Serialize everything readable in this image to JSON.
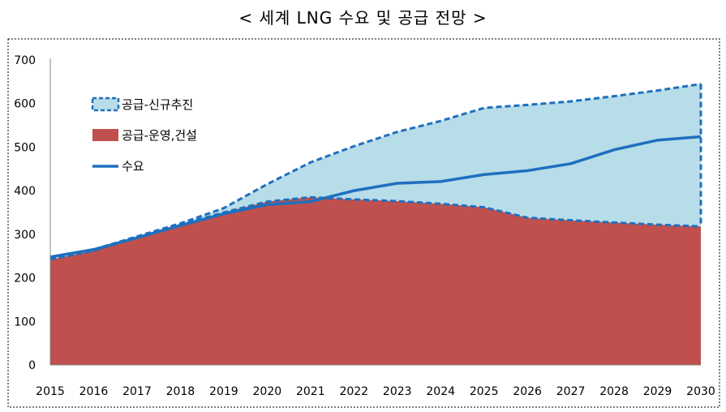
{
  "chart_data": {
    "type": "area",
    "title": "< 세계 LNG 수요 및 공급 전망 >",
    "xlabel": "",
    "ylabel": "",
    "x": [
      2015,
      2016,
      2017,
      2018,
      2019,
      2020,
      2021,
      2022,
      2023,
      2024,
      2025,
      2026,
      2027,
      2028,
      2029,
      2030
    ],
    "ylim": [
      0,
      700
    ],
    "yticks": [
      0,
      100,
      200,
      300,
      400,
      500,
      600,
      700
    ],
    "grid": false,
    "legend_position": "top-left",
    "series": [
      {
        "name": "공급-신규추진",
        "kind": "area-stacked-total",
        "color": "#b7dde8",
        "edge_color": "#1f6fbf",
        "values": [
          245,
          265,
          295,
          325,
          360,
          415,
          465,
          502,
          535,
          560,
          590,
          597,
          605,
          617,
          630,
          645
        ]
      },
      {
        "name": "공급-운영,건설",
        "kind": "area",
        "color": "#c0504d",
        "edge_color": "#1f6fbf",
        "values": [
          242,
          262,
          293,
          322,
          350,
          375,
          385,
          380,
          376,
          370,
          362,
          338,
          332,
          327,
          322,
          318
        ]
      },
      {
        "name": "수요",
        "kind": "line",
        "color": "#1f6fbf",
        "values": [
          248,
          265,
          292,
          320,
          347,
          368,
          375,
          400,
          417,
          421,
          437,
          446,
          462,
          494,
          516,
          524
        ]
      }
    ]
  }
}
